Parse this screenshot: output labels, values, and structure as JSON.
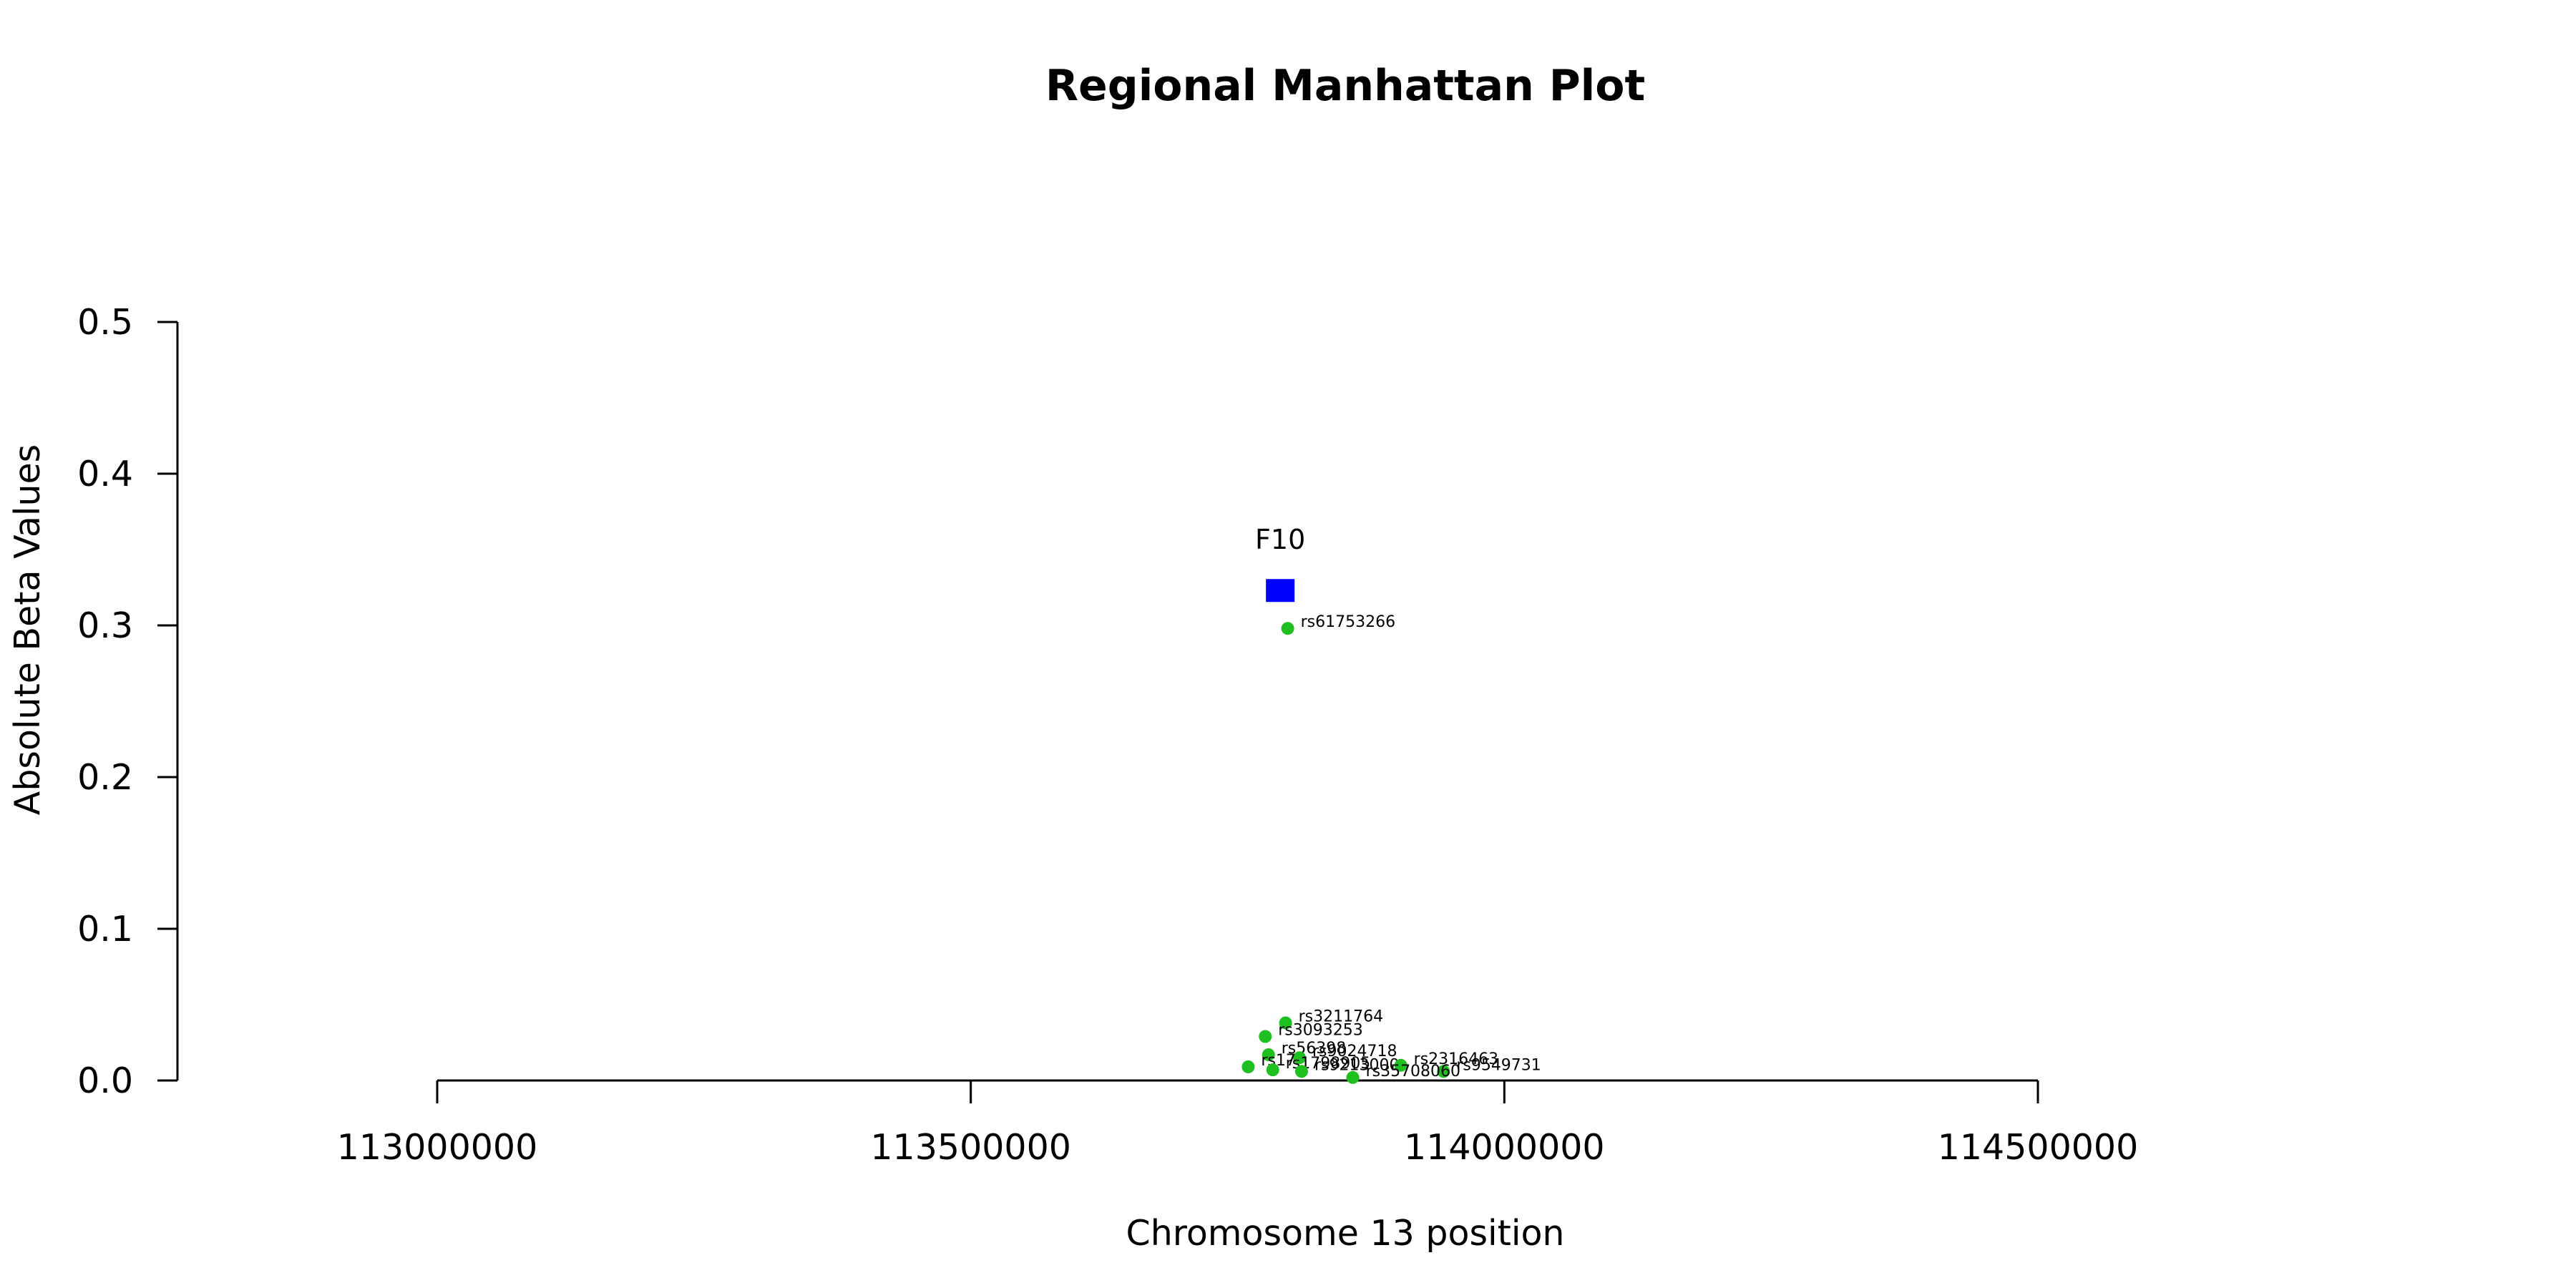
{
  "chart_data": {
    "type": "scatter",
    "title": "Regional Manhattan Plot",
    "xlabel": "Chromosome 13 position",
    "ylabel": "Absolute Beta Values",
    "xlim": [
      113000000,
      114500000
    ],
    "ylim": [
      0,
      0.5
    ],
    "x_ticks": [
      113000000,
      113500000,
      114000000,
      114500000
    ],
    "x_tick_labels": [
      "113000000",
      "113500000",
      "114000000",
      "114500000"
    ],
    "y_ticks": [
      0,
      0.1,
      0.2,
      0.3,
      0.4,
      0.5
    ],
    "y_tick_labels": [
      "0.0",
      "0.1",
      "0.2",
      "0.3",
      "0.4",
      "0.5"
    ],
    "grid": false,
    "colors": {
      "snp": "#1fbf1f",
      "gene": "#0000ff",
      "axis": "#000000"
    },
    "gene": {
      "name": "F10",
      "x": 113790000,
      "y": 0.323,
      "marker": "square"
    },
    "points": [
      {
        "label": "rs61753266",
        "x": 113797000,
        "y": 0.298
      },
      {
        "label": "rs3211764",
        "x": 113795000,
        "y": 0.038
      },
      {
        "label": "rs3093253",
        "x": 113776000,
        "y": 0.029
      },
      {
        "label": "rs56398",
        "x": 113779000,
        "y": 0.017
      },
      {
        "label": "rs9024718",
        "x": 113808000,
        "y": 0.015
      },
      {
        "label": "rs17",
        "x": 113760000,
        "y": 0.009
      },
      {
        "label": "rs1798905",
        "x": 113783000,
        "y": 0.007
      },
      {
        "label": "rs9213000",
        "x": 113810000,
        "y": 0.006
      },
      {
        "label": "rs2316463",
        "x": 113903000,
        "y": 0.01
      },
      {
        "label": "rs9549731",
        "x": 113943000,
        "y": 0.006
      },
      {
        "label": "rs35708060",
        "x": 113858000,
        "y": 0.002
      }
    ]
  }
}
